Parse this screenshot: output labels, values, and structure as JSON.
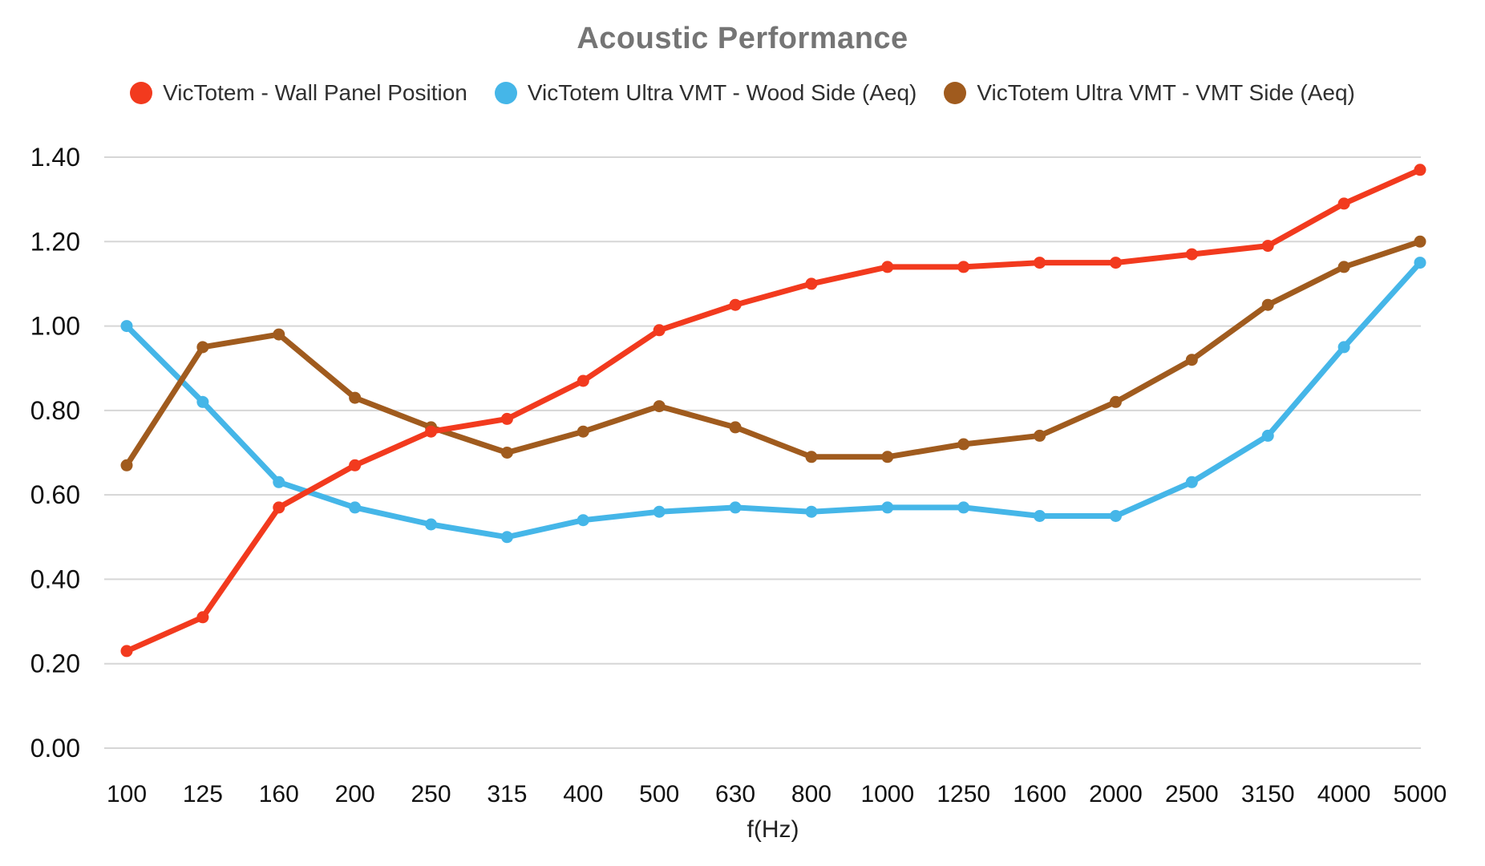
{
  "chart_data": {
    "type": "line",
    "title": "Acoustic Performance",
    "xlabel": "f(Hz)",
    "ylabel": "",
    "categories": [
      "100",
      "125",
      "160",
      "200",
      "250",
      "315",
      "400",
      "500",
      "630",
      "800",
      "1000",
      "1250",
      "1600",
      "2000",
      "2500",
      "3150",
      "4000",
      "5000"
    ],
    "y_ticks": [
      "0.00",
      "0.20",
      "0.40",
      "0.60",
      "0.80",
      "1.00",
      "1.20",
      "1.40"
    ],
    "ylim": [
      0,
      1.4
    ],
    "grid": true,
    "legend_position": "top",
    "series": [
      {
        "name": "VicTotem - Wall Panel Position",
        "color": "#f23a1e",
        "values": [
          0.23,
          0.31,
          0.57,
          0.67,
          0.75,
          0.78,
          0.87,
          0.99,
          1.05,
          1.1,
          1.14,
          1.14,
          1.15,
          1.15,
          1.17,
          1.19,
          1.29,
          1.37
        ]
      },
      {
        "name": "VicTotem Ultra VMT - Wood Side (Aeq)",
        "color": "#45b6e8",
        "values": [
          1.0,
          0.82,
          0.63,
          0.57,
          0.53,
          0.5,
          0.54,
          0.56,
          0.57,
          0.56,
          0.57,
          0.57,
          0.55,
          0.55,
          0.63,
          0.74,
          0.95,
          1.15
        ]
      },
      {
        "name": "VicTotem Ultra VMT - VMT Side (Aeq)",
        "color": "#a05b1e",
        "values": [
          0.67,
          0.95,
          0.98,
          0.83,
          0.76,
          0.7,
          0.75,
          0.81,
          0.76,
          0.69,
          0.69,
          0.72,
          0.74,
          0.82,
          0.92,
          1.05,
          1.14,
          1.2
        ]
      }
    ]
  },
  "styles": {
    "background": "#ffffff",
    "title_color": "#757575",
    "grid_color": "#d6d6d6",
    "tick_label_color": "#111111",
    "legend_text_color": "#2f2f2f",
    "xlabel_color": "#222222"
  }
}
